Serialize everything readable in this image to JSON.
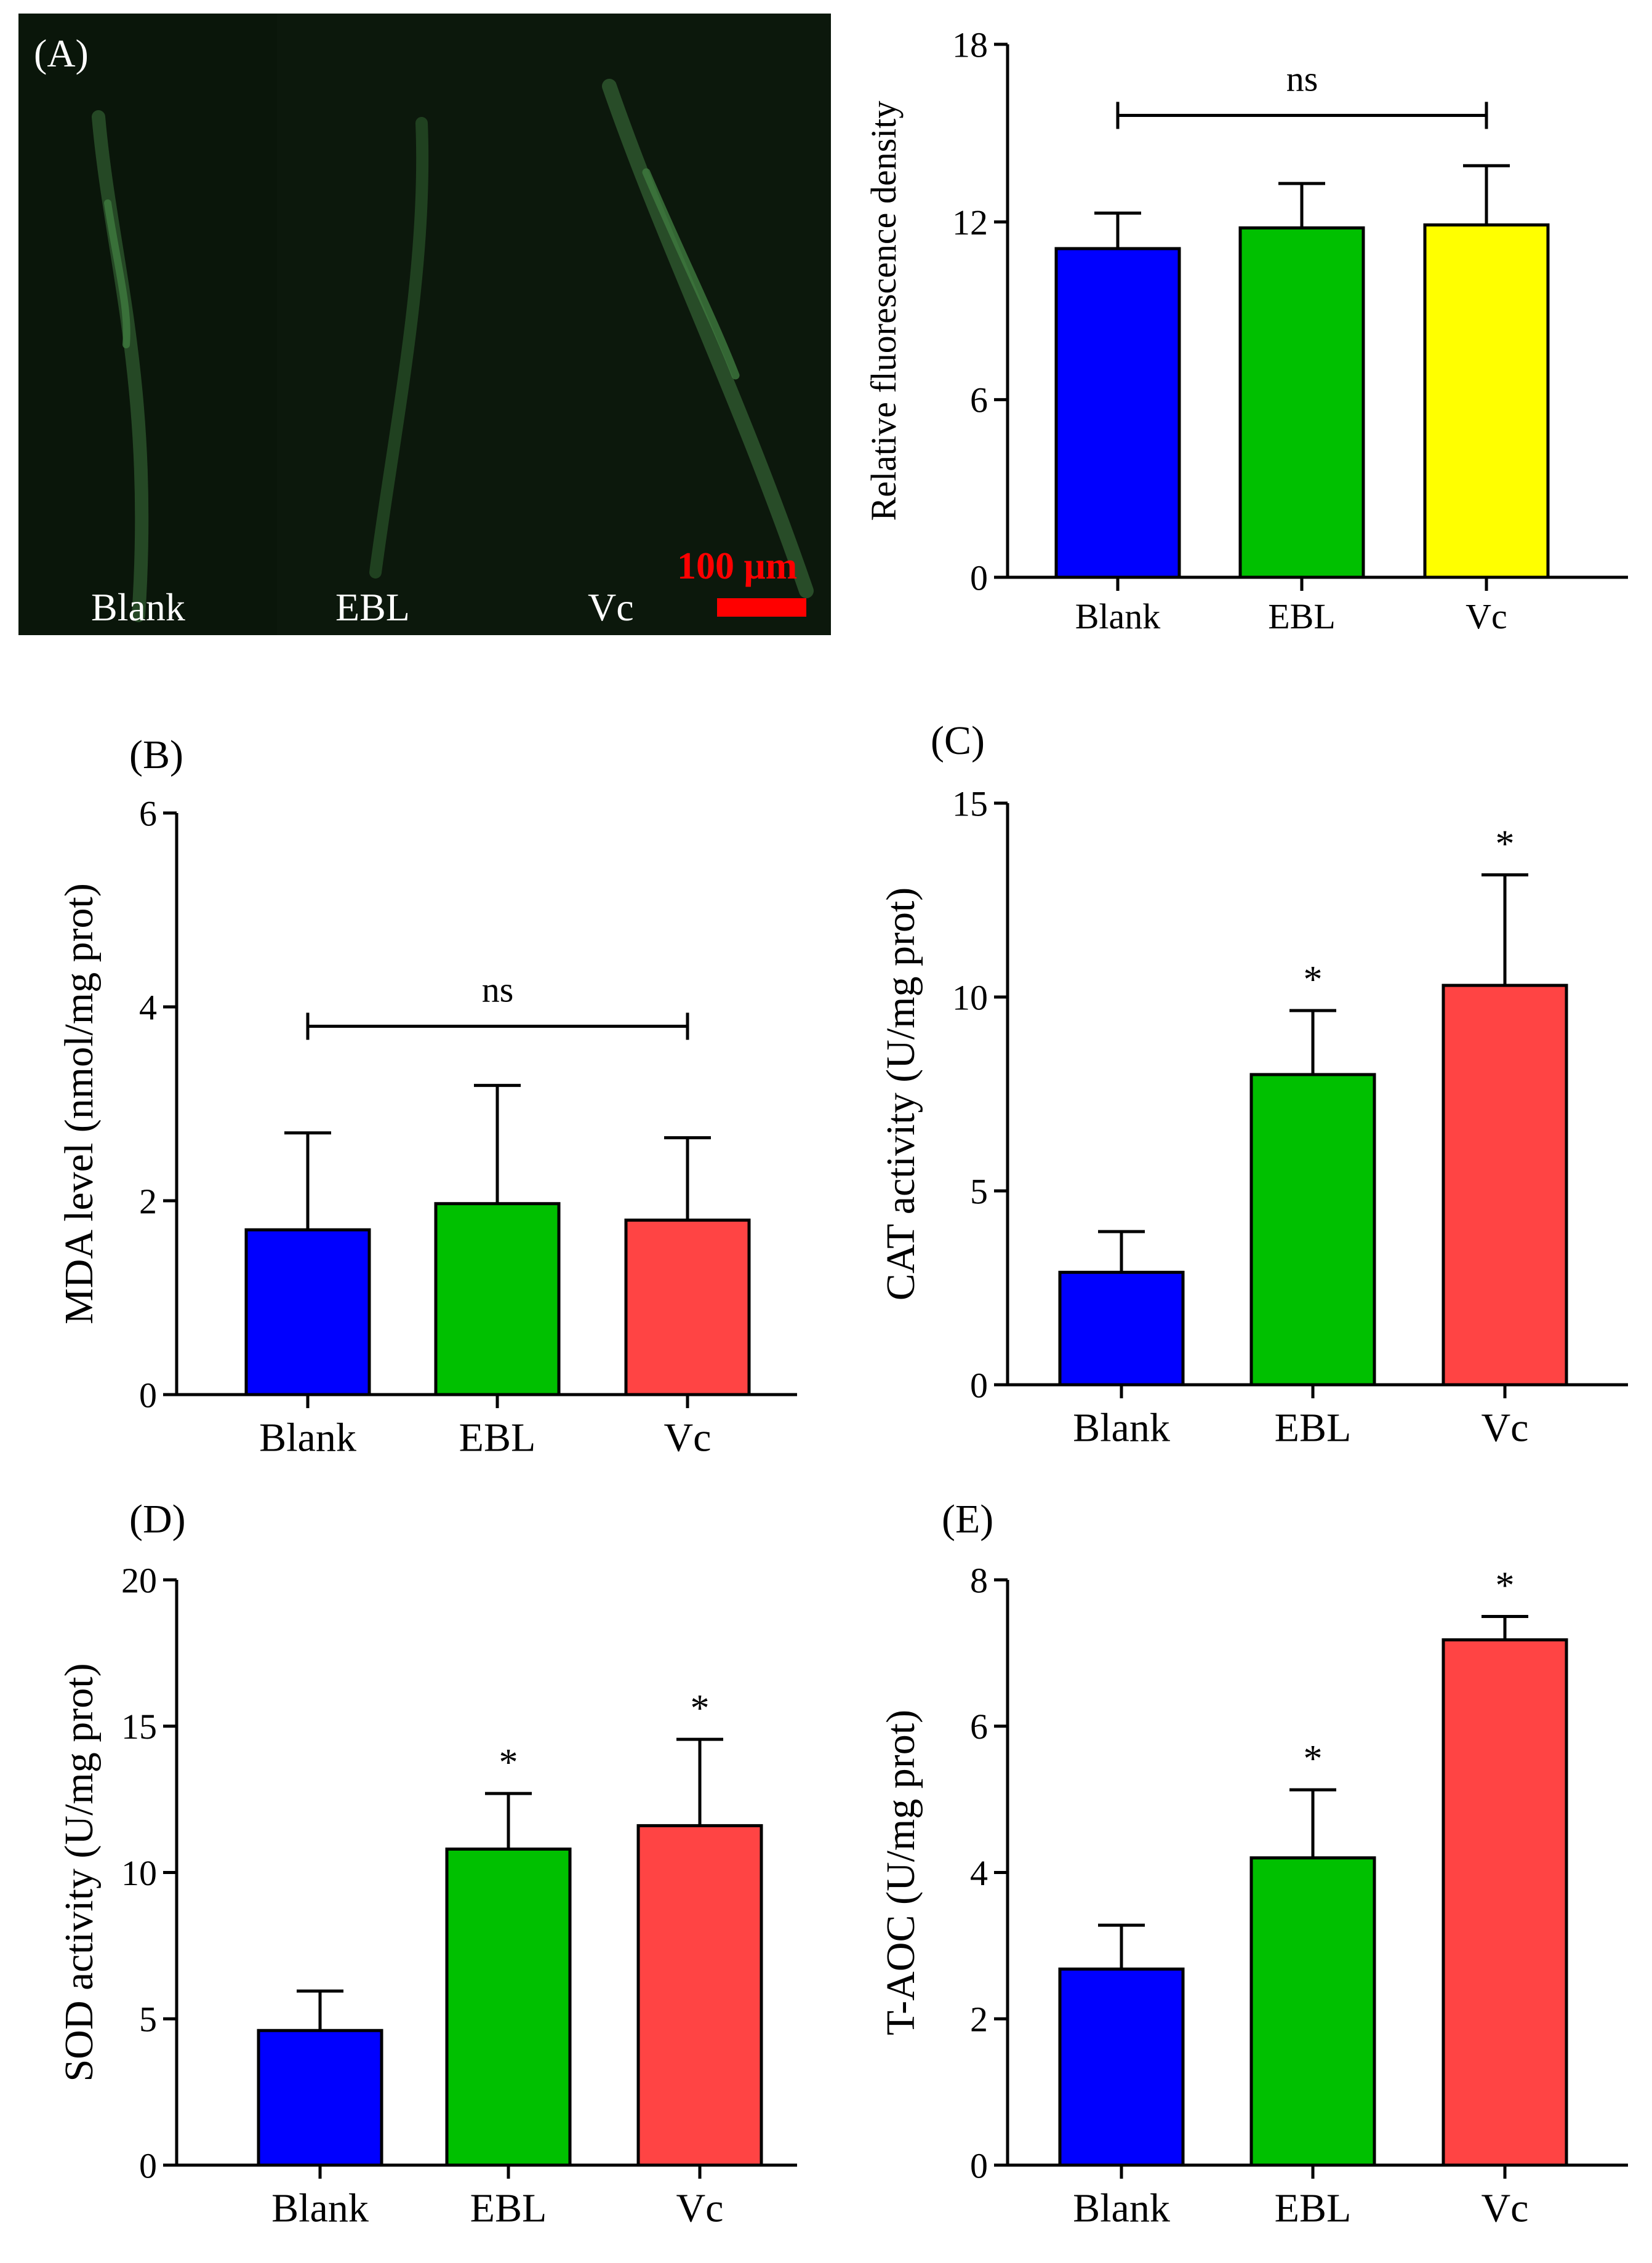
{
  "panel_a_image": {
    "label": "(A)",
    "scale_bar_text": "100 μm",
    "lane_labels": [
      "Blank",
      "EBL",
      "Vc"
    ],
    "background_color": "#0c180c",
    "fluor_color": "#2f5a2f",
    "scale_bar_color": "#ff0000"
  },
  "colors": {
    "blue": "#0000ff",
    "green": "#00c000",
    "yellow": "#ffff00",
    "red": "#ff4444"
  },
  "chart_data": [
    {
      "id": "fluor",
      "type": "bar",
      "panel_label": "",
      "ylabel": "Relative fluorescence density",
      "xlabel": "",
      "categories": [
        "Blank",
        "EBL",
        "Vc"
      ],
      "values": [
        11.1,
        11.8,
        11.9
      ],
      "errors": [
        1.2,
        1.5,
        2.0
      ],
      "bar_colors": [
        "#0000ff",
        "#00c000",
        "#ffff00"
      ],
      "ylim": [
        0,
        18
      ],
      "yticks": [
        0,
        6,
        12,
        18
      ],
      "annotation": {
        "type": "bracket",
        "text": "ns",
        "y": 15.6
      },
      "significance": []
    },
    {
      "id": "mda",
      "type": "bar",
      "panel_label": "(B)",
      "ylabel": "MDA level (nmol/mg prot)",
      "xlabel": "",
      "categories": [
        "Blank",
        "EBL",
        "Vc"
      ],
      "values": [
        1.7,
        1.97,
        1.8
      ],
      "errors": [
        1.0,
        1.22,
        0.85
      ],
      "bar_colors": [
        "#0000ff",
        "#00c000",
        "#ff4444"
      ],
      "ylim": [
        0,
        6
      ],
      "yticks": [
        0,
        2,
        4,
        6
      ],
      "annotation": {
        "type": "bracket",
        "text": "ns",
        "y": 3.8
      },
      "significance": []
    },
    {
      "id": "cat",
      "type": "bar",
      "panel_label": "(C)",
      "ylabel": "CAT activity (U/mg prot)",
      "xlabel": "",
      "categories": [
        "Blank",
        "EBL",
        "Vc"
      ],
      "values": [
        2.9,
        8.0,
        10.3
      ],
      "errors": [
        1.05,
        1.65,
        2.85
      ],
      "bar_colors": [
        "#0000ff",
        "#00c000",
        "#ff4444"
      ],
      "ylim": [
        0,
        15
      ],
      "yticks": [
        0,
        5,
        10,
        15
      ],
      "annotation": null,
      "significance": [
        "",
        "*",
        "*"
      ]
    },
    {
      "id": "sod",
      "type": "bar",
      "panel_label": "(D)",
      "ylabel": "SOD activity (U/mg prot)",
      "xlabel": "",
      "categories": [
        "Blank",
        "EBL",
        "Vc"
      ],
      "values": [
        4.6,
        10.8,
        11.6
      ],
      "errors": [
        1.35,
        1.9,
        2.95
      ],
      "bar_colors": [
        "#0000ff",
        "#00c000",
        "#ff4444"
      ],
      "ylim": [
        0,
        20
      ],
      "yticks": [
        0,
        5,
        10,
        15,
        20
      ],
      "annotation": null,
      "significance": [
        "",
        "*",
        "*"
      ]
    },
    {
      "id": "taoc",
      "type": "bar",
      "panel_label": "(E)",
      "ylabel": "T-AOC (U/mg prot)",
      "xlabel": "",
      "categories": [
        "Blank",
        "EBL",
        "Vc"
      ],
      "values": [
        2.68,
        4.2,
        7.18
      ],
      "errors": [
        0.6,
        0.93,
        0.32
      ],
      "bar_colors": [
        "#0000ff",
        "#00c000",
        "#ff4444"
      ],
      "ylim": [
        0,
        8
      ],
      "yticks": [
        0,
        2,
        4,
        6,
        8
      ],
      "annotation": null,
      "significance": [
        "",
        "*",
        "*"
      ]
    }
  ]
}
